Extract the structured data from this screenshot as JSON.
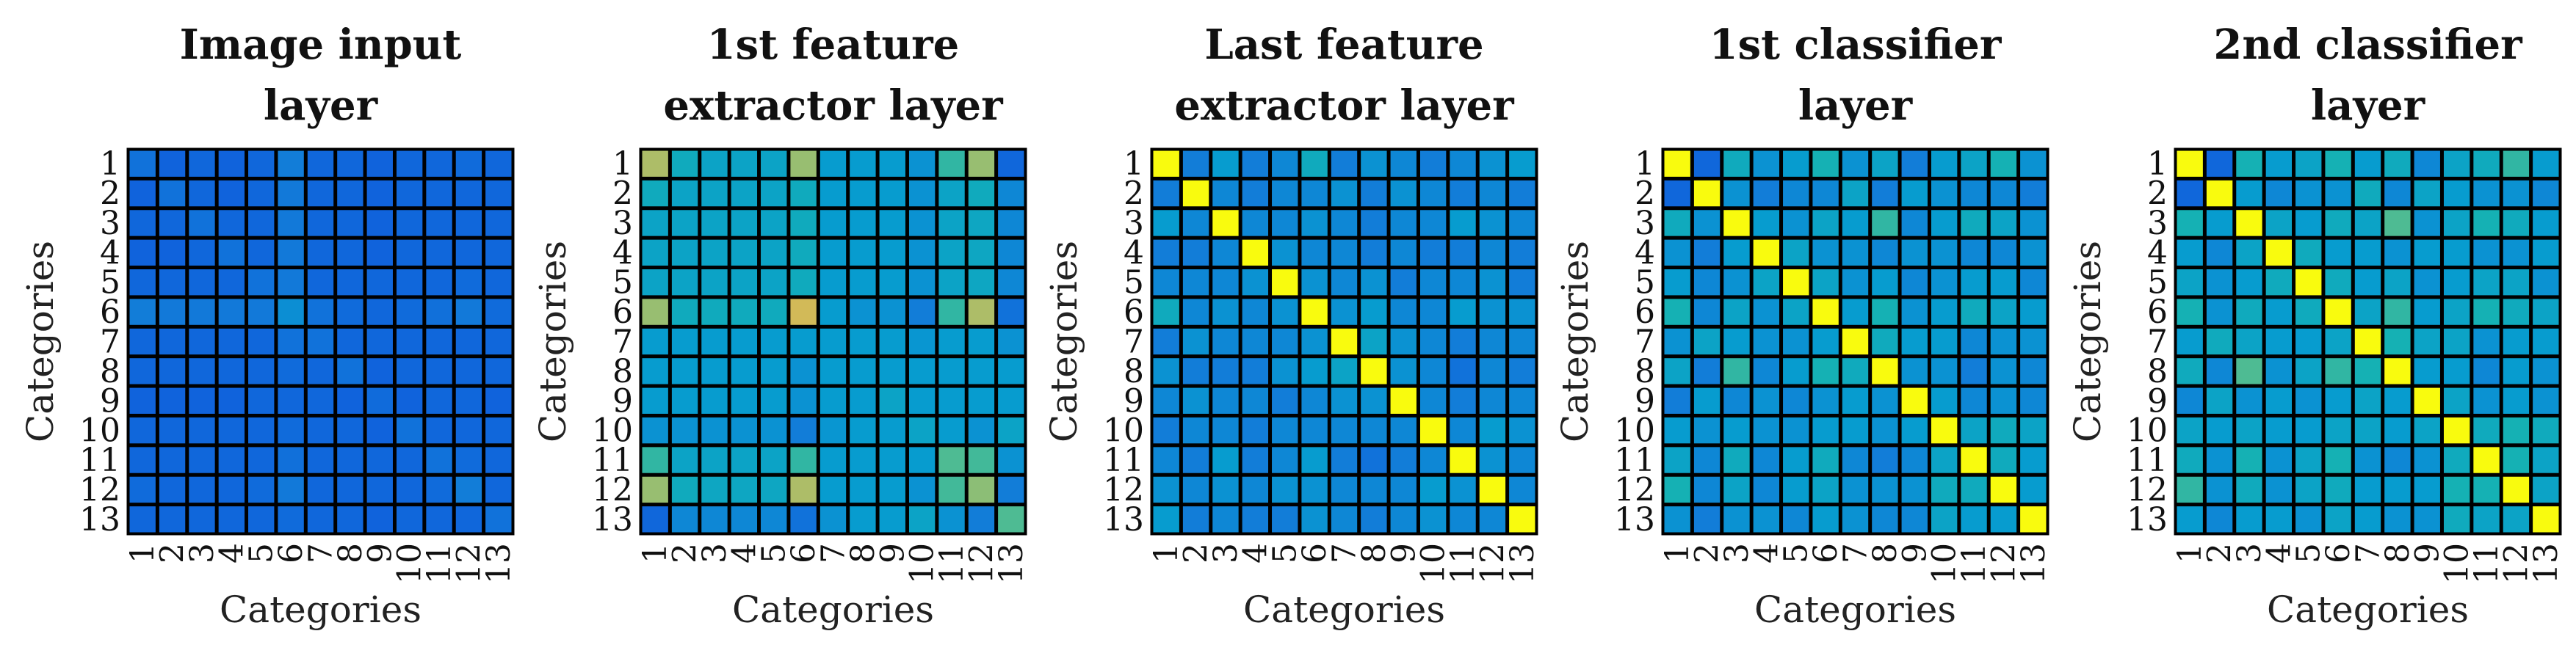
{
  "chart_data": [
    {
      "type": "heatmap",
      "title_lines": [
        "Image input",
        "layer"
      ],
      "xlabel": "Categories",
      "ylabel": "Categories",
      "categories": [
        "1",
        "2",
        "3",
        "4",
        "5",
        "6",
        "7",
        "8",
        "9",
        "10",
        "11",
        "12",
        "13"
      ],
      "colormap": "parula",
      "clim": [
        0,
        1
      ],
      "values": [
        [
          0.25,
          0.18,
          0.2,
          0.18,
          0.2,
          0.3,
          0.2,
          0.2,
          0.18,
          0.2,
          0.2,
          0.22,
          0.2
        ],
        [
          0.18,
          0.25,
          0.2,
          0.18,
          0.2,
          0.28,
          0.2,
          0.2,
          0.18,
          0.2,
          0.2,
          0.2,
          0.2
        ],
        [
          0.2,
          0.2,
          0.25,
          0.2,
          0.2,
          0.28,
          0.2,
          0.2,
          0.18,
          0.2,
          0.2,
          0.2,
          0.2
        ],
        [
          0.18,
          0.18,
          0.2,
          0.25,
          0.2,
          0.28,
          0.2,
          0.2,
          0.18,
          0.2,
          0.2,
          0.2,
          0.2
        ],
        [
          0.2,
          0.2,
          0.2,
          0.2,
          0.25,
          0.28,
          0.2,
          0.2,
          0.2,
          0.2,
          0.2,
          0.22,
          0.2
        ],
        [
          0.3,
          0.28,
          0.28,
          0.28,
          0.28,
          0.38,
          0.25,
          0.22,
          0.2,
          0.22,
          0.24,
          0.28,
          0.22
        ],
        [
          0.2,
          0.2,
          0.2,
          0.2,
          0.2,
          0.25,
          0.25,
          0.2,
          0.2,
          0.2,
          0.2,
          0.2,
          0.2
        ],
        [
          0.2,
          0.2,
          0.2,
          0.2,
          0.2,
          0.22,
          0.2,
          0.25,
          0.18,
          0.2,
          0.2,
          0.2,
          0.2
        ],
        [
          0.18,
          0.18,
          0.18,
          0.18,
          0.2,
          0.2,
          0.2,
          0.18,
          0.22,
          0.18,
          0.2,
          0.2,
          0.18
        ],
        [
          0.2,
          0.2,
          0.2,
          0.2,
          0.2,
          0.22,
          0.2,
          0.2,
          0.18,
          0.25,
          0.2,
          0.2,
          0.2
        ],
        [
          0.2,
          0.2,
          0.2,
          0.2,
          0.2,
          0.24,
          0.2,
          0.2,
          0.2,
          0.2,
          0.25,
          0.22,
          0.2
        ],
        [
          0.22,
          0.2,
          0.2,
          0.2,
          0.22,
          0.28,
          0.2,
          0.2,
          0.2,
          0.2,
          0.22,
          0.3,
          0.2
        ],
        [
          0.2,
          0.2,
          0.2,
          0.2,
          0.2,
          0.22,
          0.2,
          0.2,
          0.18,
          0.2,
          0.2,
          0.2,
          0.25
        ]
      ]
    },
    {
      "type": "heatmap",
      "title_lines": [
        "1st feature",
        "extractor layer"
      ],
      "xlabel": "Categories",
      "ylabel": "Categories",
      "categories": [
        "1",
        "2",
        "3",
        "4",
        "5",
        "6",
        "7",
        "8",
        "9",
        "10",
        "11",
        "12",
        "13"
      ],
      "colormap": "parula",
      "clim": [
        0,
        1
      ],
      "values": [
        [
          0.85,
          0.55,
          0.5,
          0.5,
          0.5,
          0.82,
          0.45,
          0.45,
          0.45,
          0.4,
          0.65,
          0.82,
          0.2
        ],
        [
          0.55,
          0.5,
          0.5,
          0.5,
          0.5,
          0.55,
          0.45,
          0.45,
          0.45,
          0.4,
          0.5,
          0.55,
          0.35
        ],
        [
          0.5,
          0.5,
          0.5,
          0.5,
          0.5,
          0.55,
          0.45,
          0.45,
          0.45,
          0.4,
          0.5,
          0.52,
          0.35
        ],
        [
          0.5,
          0.5,
          0.5,
          0.5,
          0.5,
          0.55,
          0.45,
          0.45,
          0.45,
          0.4,
          0.5,
          0.52,
          0.35
        ],
        [
          0.5,
          0.5,
          0.5,
          0.5,
          0.5,
          0.55,
          0.45,
          0.45,
          0.45,
          0.4,
          0.5,
          0.52,
          0.35
        ],
        [
          0.82,
          0.55,
          0.55,
          0.55,
          0.55,
          0.9,
          0.45,
          0.4,
          0.4,
          0.3,
          0.65,
          0.85,
          0.25
        ],
        [
          0.45,
          0.45,
          0.45,
          0.45,
          0.45,
          0.45,
          0.45,
          0.45,
          0.45,
          0.42,
          0.45,
          0.45,
          0.4
        ],
        [
          0.45,
          0.45,
          0.45,
          0.45,
          0.45,
          0.4,
          0.45,
          0.45,
          0.45,
          0.45,
          0.45,
          0.45,
          0.45
        ],
        [
          0.45,
          0.45,
          0.45,
          0.45,
          0.45,
          0.4,
          0.45,
          0.45,
          0.5,
          0.45,
          0.45,
          0.45,
          0.45
        ],
        [
          0.4,
          0.4,
          0.4,
          0.4,
          0.4,
          0.3,
          0.42,
          0.45,
          0.45,
          0.5,
          0.45,
          0.4,
          0.5
        ],
        [
          0.65,
          0.5,
          0.5,
          0.5,
          0.5,
          0.65,
          0.45,
          0.45,
          0.45,
          0.45,
          0.7,
          0.68,
          0.4
        ],
        [
          0.82,
          0.55,
          0.52,
          0.52,
          0.52,
          0.85,
          0.45,
          0.45,
          0.45,
          0.4,
          0.68,
          0.8,
          0.3
        ],
        [
          0.2,
          0.35,
          0.35,
          0.35,
          0.35,
          0.25,
          0.4,
          0.45,
          0.45,
          0.5,
          0.4,
          0.3,
          0.7
        ]
      ]
    },
    {
      "type": "heatmap",
      "title_lines": [
        "Last feature",
        "extractor layer"
      ],
      "xlabel": "Categories",
      "ylabel": "Categories",
      "categories": [
        "1",
        "2",
        "3",
        "4",
        "5",
        "6",
        "7",
        "8",
        "9",
        "10",
        "11",
        "12",
        "13"
      ],
      "colormap": "parula",
      "clim": [
        0,
        1
      ],
      "values": [
        [
          1.0,
          0.3,
          0.45,
          0.3,
          0.35,
          0.55,
          0.3,
          0.4,
          0.35,
          0.3,
          0.35,
          0.4,
          0.45
        ],
        [
          0.3,
          1.0,
          0.35,
          0.3,
          0.35,
          0.35,
          0.4,
          0.3,
          0.4,
          0.35,
          0.3,
          0.35,
          0.3
        ],
        [
          0.45,
          0.35,
          1.0,
          0.35,
          0.35,
          0.4,
          0.35,
          0.3,
          0.35,
          0.35,
          0.45,
          0.4,
          0.35
        ],
        [
          0.3,
          0.3,
          0.35,
          1.0,
          0.4,
          0.35,
          0.35,
          0.3,
          0.35,
          0.3,
          0.3,
          0.35,
          0.3
        ],
        [
          0.35,
          0.35,
          0.35,
          0.4,
          1.0,
          0.4,
          0.35,
          0.4,
          0.3,
          0.35,
          0.35,
          0.4,
          0.3
        ],
        [
          0.55,
          0.35,
          0.4,
          0.35,
          0.4,
          1.0,
          0.4,
          0.45,
          0.35,
          0.35,
          0.45,
          0.4,
          0.4
        ],
        [
          0.3,
          0.4,
          0.35,
          0.35,
          0.35,
          0.4,
          1.0,
          0.5,
          0.4,
          0.35,
          0.3,
          0.35,
          0.35
        ],
        [
          0.4,
          0.3,
          0.3,
          0.3,
          0.4,
          0.45,
          0.5,
          1.0,
          0.4,
          0.35,
          0.25,
          0.35,
          0.3
        ],
        [
          0.35,
          0.4,
          0.35,
          0.35,
          0.3,
          0.35,
          0.4,
          0.4,
          1.0,
          0.35,
          0.3,
          0.35,
          0.35
        ],
        [
          0.3,
          0.35,
          0.35,
          0.3,
          0.35,
          0.35,
          0.35,
          0.35,
          0.35,
          1.0,
          0.35,
          0.45,
          0.4
        ],
        [
          0.35,
          0.3,
          0.45,
          0.3,
          0.35,
          0.45,
          0.3,
          0.25,
          0.3,
          0.35,
          1.0,
          0.4,
          0.35
        ],
        [
          0.4,
          0.35,
          0.4,
          0.35,
          0.4,
          0.4,
          0.35,
          0.35,
          0.35,
          0.45,
          0.4,
          1.0,
          0.35
        ],
        [
          0.45,
          0.3,
          0.35,
          0.3,
          0.3,
          0.4,
          0.35,
          0.3,
          0.35,
          0.4,
          0.35,
          0.35,
          1.0
        ]
      ]
    },
    {
      "type": "heatmap",
      "title_lines": [
        "1st classifier",
        "layer"
      ],
      "xlabel": "Categories",
      "ylabel": "Categories",
      "categories": [
        "1",
        "2",
        "3",
        "4",
        "5",
        "6",
        "7",
        "8",
        "9",
        "10",
        "11",
        "12",
        "13"
      ],
      "colormap": "parula",
      "clim": [
        0,
        1
      ],
      "values": [
        [
          1.0,
          0.2,
          0.55,
          0.4,
          0.45,
          0.6,
          0.4,
          0.5,
          0.3,
          0.45,
          0.5,
          0.6,
          0.4
        ],
        [
          0.2,
          1.0,
          0.4,
          0.3,
          0.35,
          0.35,
          0.5,
          0.3,
          0.45,
          0.4,
          0.35,
          0.35,
          0.3
        ],
        [
          0.55,
          0.4,
          1.0,
          0.45,
          0.4,
          0.5,
          0.45,
          0.65,
          0.35,
          0.45,
          0.55,
          0.5,
          0.4
        ],
        [
          0.4,
          0.3,
          0.45,
          1.0,
          0.5,
          0.4,
          0.4,
          0.35,
          0.4,
          0.4,
          0.35,
          0.35,
          0.4
        ],
        [
          0.45,
          0.35,
          0.4,
          0.5,
          1.0,
          0.5,
          0.4,
          0.45,
          0.35,
          0.4,
          0.45,
          0.45,
          0.35
        ],
        [
          0.6,
          0.35,
          0.5,
          0.4,
          0.5,
          1.0,
          0.45,
          0.6,
          0.4,
          0.45,
          0.55,
          0.5,
          0.45
        ],
        [
          0.4,
          0.5,
          0.45,
          0.4,
          0.4,
          0.45,
          1.0,
          0.55,
          0.45,
          0.45,
          0.35,
          0.4,
          0.4
        ],
        [
          0.5,
          0.3,
          0.65,
          0.35,
          0.45,
          0.6,
          0.55,
          1.0,
          0.4,
          0.4,
          0.3,
          0.4,
          0.35
        ],
        [
          0.3,
          0.45,
          0.35,
          0.4,
          0.35,
          0.4,
          0.45,
          0.4,
          1.0,
          0.45,
          0.35,
          0.4,
          0.35
        ],
        [
          0.45,
          0.4,
          0.45,
          0.4,
          0.4,
          0.45,
          0.45,
          0.4,
          0.45,
          1.0,
          0.5,
          0.55,
          0.5
        ],
        [
          0.5,
          0.35,
          0.55,
          0.35,
          0.45,
          0.55,
          0.35,
          0.3,
          0.35,
          0.5,
          1.0,
          0.55,
          0.45
        ],
        [
          0.6,
          0.35,
          0.5,
          0.35,
          0.45,
          0.5,
          0.4,
          0.4,
          0.4,
          0.55,
          0.55,
          1.0,
          0.45
        ],
        [
          0.4,
          0.3,
          0.4,
          0.4,
          0.35,
          0.45,
          0.4,
          0.35,
          0.35,
          0.5,
          0.45,
          0.45,
          1.0
        ]
      ]
    },
    {
      "type": "heatmap",
      "title_lines": [
        "2nd classifier",
        "layer"
      ],
      "xlabel": "Categories",
      "ylabel": "Categories",
      "categories": [
        "1",
        "2",
        "3",
        "4",
        "5",
        "6",
        "7",
        "8",
        "9",
        "10",
        "11",
        "12",
        "13"
      ],
      "colormap": "parula",
      "clim": [
        0,
        1
      ],
      "values": [
        [
          1.0,
          0.2,
          0.6,
          0.45,
          0.5,
          0.6,
          0.45,
          0.55,
          0.35,
          0.5,
          0.55,
          0.65,
          0.45
        ],
        [
          0.2,
          1.0,
          0.45,
          0.35,
          0.4,
          0.4,
          0.55,
          0.35,
          0.5,
          0.45,
          0.4,
          0.4,
          0.35
        ],
        [
          0.6,
          0.45,
          1.0,
          0.5,
          0.45,
          0.55,
          0.5,
          0.7,
          0.4,
          0.5,
          0.6,
          0.55,
          0.45
        ],
        [
          0.45,
          0.35,
          0.5,
          1.0,
          0.55,
          0.45,
          0.45,
          0.4,
          0.45,
          0.45,
          0.4,
          0.4,
          0.45
        ],
        [
          0.5,
          0.4,
          0.45,
          0.55,
          1.0,
          0.55,
          0.45,
          0.5,
          0.4,
          0.45,
          0.5,
          0.5,
          0.4
        ],
        [
          0.6,
          0.4,
          0.55,
          0.45,
          0.55,
          1.0,
          0.5,
          0.65,
          0.45,
          0.5,
          0.6,
          0.55,
          0.5
        ],
        [
          0.45,
          0.55,
          0.5,
          0.45,
          0.45,
          0.5,
          1.0,
          0.6,
          0.5,
          0.5,
          0.4,
          0.45,
          0.45
        ],
        [
          0.55,
          0.35,
          0.7,
          0.4,
          0.5,
          0.65,
          0.6,
          1.0,
          0.45,
          0.45,
          0.35,
          0.45,
          0.4
        ],
        [
          0.35,
          0.5,
          0.4,
          0.45,
          0.4,
          0.45,
          0.5,
          0.45,
          1.0,
          0.5,
          0.4,
          0.45,
          0.4
        ],
        [
          0.5,
          0.45,
          0.5,
          0.45,
          0.45,
          0.5,
          0.5,
          0.45,
          0.5,
          1.0,
          0.55,
          0.6,
          0.55
        ],
        [
          0.55,
          0.4,
          0.6,
          0.4,
          0.5,
          0.6,
          0.4,
          0.35,
          0.4,
          0.55,
          1.0,
          0.6,
          0.5
        ],
        [
          0.65,
          0.4,
          0.55,
          0.4,
          0.5,
          0.55,
          0.45,
          0.45,
          0.45,
          0.6,
          0.6,
          1.0,
          0.5
        ],
        [
          0.45,
          0.35,
          0.45,
          0.45,
          0.4,
          0.5,
          0.45,
          0.4,
          0.4,
          0.55,
          0.5,
          0.5,
          1.0
        ]
      ]
    }
  ]
}
